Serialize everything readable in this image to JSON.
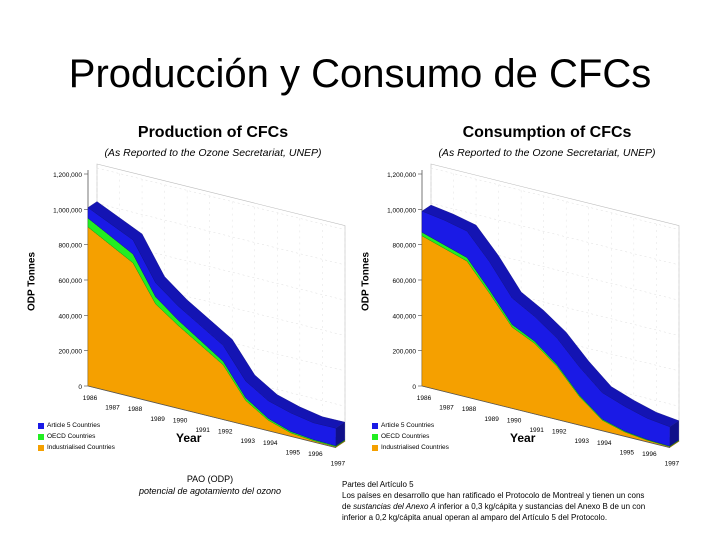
{
  "slide": {
    "title": "Producción y Consumo de CFCs",
    "note_left": {
      "line1": "PAO (ODP)",
      "line2": "potencial de agotamiento del ozono"
    },
    "note_right": {
      "heading": "Partes del Artículo 5",
      "line1": "Los países en desarrollo que han ratificado el Protocolo de Montreal y tienen un cons",
      "line2_prefix": "de ",
      "line2_italic": "sustancias del Anexo A",
      "line2_suffix": " inferior a 0,3 kg/cápita y sustancias del Anexo B de un con",
      "line3": "inferior a 0,2 kg/cápita anual operan al amparo del Artículo 5 del Protocolo."
    }
  },
  "colors": {
    "article5": "#1a1ae6",
    "oecd": "#22ee22",
    "industrialised": "#f5a000"
  },
  "chart_data": [
    {
      "type": "area",
      "title": "Production of CFCs",
      "subtitle": "(As Reported to the Ozone Secretariat, UNEP)",
      "ylabel": "ODP Tonnes",
      "xlabel": "Year",
      "x": [
        "1986",
        "1987",
        "1988",
        "1989",
        "1990",
        "1991",
        "1992",
        "1993",
        "1994",
        "1995",
        "1996",
        "1997"
      ],
      "y_ticks": [
        "0",
        "200,000",
        "400,000",
        "600,000",
        "800,000",
        "1,000,000",
        "1,200,000"
      ],
      "ylim": [
        0,
        1200000
      ],
      "stacked": true,
      "series": [
        {
          "name": "Industrialised Countries",
          "color": "#f5a000",
          "values": [
            900000,
            830000,
            760000,
            560000,
            470000,
            390000,
            310000,
            140000,
            60000,
            20000,
            8000,
            5000
          ]
        },
        {
          "name": "OECD Countries",
          "color": "#22ee22",
          "values": [
            50000,
            50000,
            50000,
            40000,
            30000,
            25000,
            20000,
            15000,
            10000,
            8000,
            6000,
            5000
          ]
        },
        {
          "name": "Article 5 Countries",
          "color": "#1a1ae6",
          "values": [
            60000,
            70000,
            80000,
            80000,
            80000,
            85000,
            90000,
            95000,
            100000,
            105000,
            95000,
            100000
          ]
        }
      ],
      "legend": [
        "Article 5 Countries",
        "OECD Countries",
        "Industrialised Countries"
      ],
      "legend_position": "bottom-left"
    },
    {
      "type": "area",
      "title": "Consumption of CFCs",
      "subtitle": "(As Reported to the Ozone Secretariat, UNEP)",
      "ylabel": "ODP Tonnes",
      "xlabel": "Year",
      "x": [
        "1986",
        "1987",
        "1988",
        "1989",
        "1990",
        "1991",
        "1992",
        "1993",
        "1994",
        "1995",
        "1996",
        "1997"
      ],
      "y_ticks": [
        "0",
        "200,000",
        "400,000",
        "600,000",
        "800,000",
        "1,000,000",
        "1,200,000"
      ],
      "ylim": [
        0,
        1200000
      ],
      "stacked": true,
      "series": [
        {
          "name": "Industrialised Countries",
          "color": "#f5a000",
          "values": [
            850000,
            810000,
            770000,
            620000,
            460000,
            400000,
            300000,
            160000,
            60000,
            25000,
            10000,
            5000
          ]
        },
        {
          "name": "OECD Countries",
          "color": "#22ee22",
          "values": [
            20000,
            20000,
            20000,
            18000,
            15000,
            12000,
            10000,
            8000,
            6000,
            5000,
            4000,
            3000
          ]
        },
        {
          "name": "Article 5 Countries",
          "color": "#1a1ae6",
          "values": [
            120000,
            140000,
            150000,
            160000,
            150000,
            140000,
            150000,
            160000,
            150000,
            140000,
            120000,
            110000
          ]
        }
      ],
      "legend": [
        "Article 5 Countries",
        "OECD Countries",
        "Industrialised Countries"
      ],
      "legend_position": "bottom-left"
    }
  ]
}
